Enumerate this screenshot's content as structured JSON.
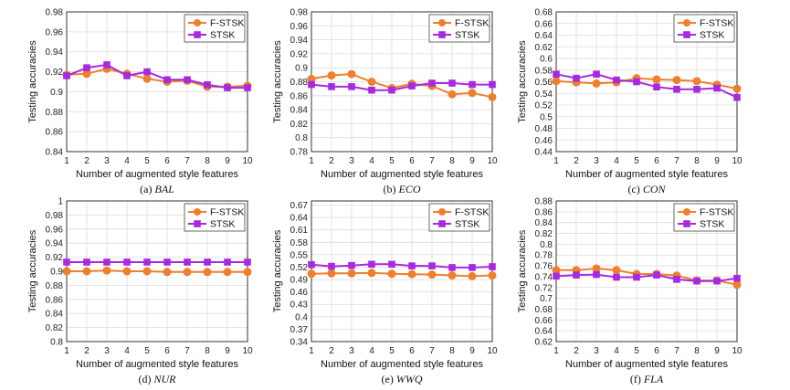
{
  "legend": {
    "series_1": "F-STSK",
    "series_2": "STSK"
  },
  "colors": {
    "F-STSK": "#ee7f2d",
    "STSK": "#a829e0",
    "grid": "#dcdcdc",
    "axis": "#333333"
  },
  "chart_data": [
    {
      "type": "line",
      "caption_prefix": "(a)",
      "caption_name": "BAL",
      "xlabel": "Number of augmented style features",
      "ylabel": "Testing accuracies",
      "x": [
        1,
        2,
        3,
        4,
        5,
        6,
        7,
        8,
        9,
        10
      ],
      "ylim": [
        0.84,
        0.98
      ],
      "yticks": [
        "0.84",
        "0.86",
        "0.88",
        "0.9",
        "0.92",
        "0.94",
        "0.96",
        "0.98"
      ],
      "grid": true,
      "legend_position": "top-right",
      "series": [
        {
          "name": "F-STSK",
          "values": [
            0.917,
            0.918,
            0.923,
            0.918,
            0.913,
            0.91,
            0.911,
            0.905,
            0.905,
            0.906
          ]
        },
        {
          "name": "STSK",
          "values": [
            0.916,
            0.924,
            0.927,
            0.916,
            0.92,
            0.912,
            0.912,
            0.907,
            0.904,
            0.904
          ]
        }
      ]
    },
    {
      "type": "line",
      "caption_prefix": "(b)",
      "caption_name": "ECO",
      "xlabel": "Number of augmented style features",
      "ylabel": "Testing accuracies",
      "x": [
        1,
        2,
        3,
        4,
        5,
        6,
        7,
        8,
        9,
        10
      ],
      "ylim": [
        0.78,
        0.98
      ],
      "yticks": [
        "0.78",
        "0.8",
        "0.82",
        "0.84",
        "0.86",
        "0.88",
        "0.9",
        "0.92",
        "0.94",
        "0.96",
        "0.98"
      ],
      "grid": true,
      "legend_position": "top-right",
      "series": [
        {
          "name": "F-STSK",
          "values": [
            0.884,
            0.889,
            0.891,
            0.88,
            0.871,
            0.877,
            0.874,
            0.862,
            0.864,
            0.858
          ]
        },
        {
          "name": "STSK",
          "values": [
            0.876,
            0.873,
            0.873,
            0.868,
            0.868,
            0.874,
            0.878,
            0.878,
            0.876,
            0.876
          ]
        }
      ]
    },
    {
      "type": "line",
      "caption_prefix": "(c)",
      "caption_name": "CON",
      "xlabel": "Number of augmented style features",
      "ylabel": "Testing accuracies",
      "x": [
        1,
        2,
        3,
        4,
        5,
        6,
        7,
        8,
        9,
        10
      ],
      "ylim": [
        0.44,
        0.68
      ],
      "yticks": [
        "0.44",
        "0.46",
        "0.48",
        "0.5",
        "0.52",
        "0.54",
        "0.56",
        "0.58",
        "0.6",
        "0.62",
        "0.64",
        "0.66",
        "0.68"
      ],
      "grid": true,
      "legend_position": "top-right",
      "series": [
        {
          "name": "F-STSK",
          "values": [
            0.561,
            0.559,
            0.557,
            0.559,
            0.566,
            0.564,
            0.563,
            0.561,
            0.555,
            0.548
          ]
        },
        {
          "name": "STSK",
          "values": [
            0.573,
            0.566,
            0.573,
            0.563,
            0.56,
            0.551,
            0.547,
            0.547,
            0.549,
            0.533
          ]
        }
      ]
    },
    {
      "type": "line",
      "caption_prefix": "(d)",
      "caption_name": "NUR",
      "xlabel": "Number of augmented style features",
      "ylabel": "Testing accuracies",
      "x": [
        1,
        2,
        3,
        4,
        5,
        6,
        7,
        8,
        9,
        10
      ],
      "ylim": [
        0.8,
        1.0
      ],
      "yticks": [
        "0.8",
        "0.82",
        "0.84",
        "0.86",
        "0.88",
        "0.9",
        "0.92",
        "0.94",
        "0.96",
        "0.98",
        "1"
      ],
      "grid": true,
      "legend_position": "top-right",
      "series": [
        {
          "name": "F-STSK",
          "values": [
            0.9,
            0.9,
            0.901,
            0.9,
            0.9,
            0.899,
            0.899,
            0.899,
            0.899,
            0.899
          ]
        },
        {
          "name": "STSK",
          "values": [
            0.913,
            0.913,
            0.913,
            0.913,
            0.913,
            0.913,
            0.913,
            0.913,
            0.913,
            0.913
          ]
        }
      ]
    },
    {
      "type": "line",
      "caption_prefix": "(e)",
      "caption_name": "WWQ",
      "xlabel": "Number of augmented style features",
      "ylabel": "Testing accuracies",
      "x": [
        1,
        2,
        3,
        4,
        5,
        6,
        7,
        8,
        9,
        10
      ],
      "ylim": [
        0.34,
        0.68
      ],
      "yticks": [
        "0.34",
        "0.37",
        "0.4",
        "0.43",
        "0.46",
        "0.49",
        "0.52",
        "0.55",
        "0.58",
        "0.61",
        "0.64",
        "0.67"
      ],
      "grid": true,
      "legend_position": "top-right",
      "series": [
        {
          "name": "F-STSK",
          "values": [
            0.504,
            0.505,
            0.505,
            0.506,
            0.504,
            0.503,
            0.502,
            0.5,
            0.498,
            0.5
          ]
        },
        {
          "name": "STSK",
          "values": [
            0.526,
            0.522,
            0.524,
            0.527,
            0.527,
            0.523,
            0.523,
            0.519,
            0.519,
            0.521
          ]
        }
      ]
    },
    {
      "type": "line",
      "caption_prefix": "(f)",
      "caption_name": "FLA",
      "xlabel": "Number of augmented style features",
      "ylabel": "Testing accuracies",
      "x": [
        1,
        2,
        3,
        4,
        5,
        6,
        7,
        8,
        9,
        10
      ],
      "ylim": [
        0.62,
        0.88
      ],
      "yticks": [
        "0.62",
        "0.64",
        "0.66",
        "0.68",
        "0.7",
        "0.72",
        "0.74",
        "0.76",
        "0.78",
        "0.8",
        "0.82",
        "0.84",
        "0.86",
        "0.88"
      ],
      "grid": true,
      "legend_position": "top-right",
      "series": [
        {
          "name": "F-STSK",
          "values": [
            0.752,
            0.752,
            0.755,
            0.752,
            0.745,
            0.745,
            0.742,
            0.733,
            0.733,
            0.725
          ]
        },
        {
          "name": "STSK",
          "values": [
            0.741,
            0.743,
            0.744,
            0.739,
            0.739,
            0.743,
            0.735,
            0.732,
            0.732,
            0.737
          ]
        }
      ]
    }
  ]
}
